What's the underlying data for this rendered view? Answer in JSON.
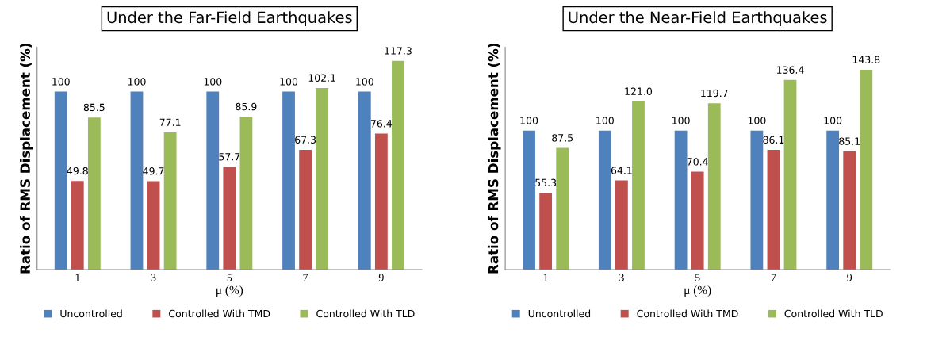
{
  "chart_data": [
    {
      "type": "bar",
      "title": "Under the Far-Field Earthquakes",
      "xlabel": "μ (%)",
      "ylabel": "Ratio of RMS Displacement (%)",
      "categories": [
        "1",
        "3",
        "5",
        "7",
        "9"
      ],
      "ylim": [
        0,
        125
      ],
      "tick_labels": "x",
      "legend": "bottom",
      "series": [
        {
          "name": "Uncontrolled",
          "color": "#4f81bd",
          "values": [
            100,
            100,
            100,
            100,
            100
          ],
          "value_labels": [
            "100",
            "100",
            "100",
            "100",
            "100"
          ]
        },
        {
          "name": "Controlled With TMD",
          "color": "#c0504d",
          "values": [
            49.8,
            49.7,
            57.7,
            67.3,
            76.4
          ],
          "value_labels": [
            "49.8",
            "49.7",
            "57.7",
            "67.3",
            "76.4"
          ]
        },
        {
          "name": "Controlled With TLD",
          "color": "#9bbb59",
          "values": [
            85.5,
            77.1,
            85.9,
            102.1,
            117.3
          ],
          "value_labels": [
            "85.5",
            "77.1",
            "85.9",
            "102.1",
            "117.3"
          ]
        }
      ]
    },
    {
      "type": "bar",
      "title": "Under the Near-Field Earthquakes",
      "xlabel": "μ (%)",
      "ylabel": "Ratio of RMS Displacement (%)",
      "categories": [
        "1",
        "3",
        "5",
        "7",
        "9"
      ],
      "ylim": [
        0,
        160
      ],
      "tick_labels": "x",
      "legend": "bottom",
      "series": [
        {
          "name": "Uncontrolled",
          "color": "#4f81bd",
          "values": [
            100,
            100,
            100,
            100,
            100
          ],
          "value_labels": [
            "100",
            "100",
            "100",
            "100",
            "100"
          ]
        },
        {
          "name": "Controlled With TMD",
          "color": "#c0504d",
          "values": [
            55.3,
            64.1,
            70.4,
            86.1,
            85.1
          ],
          "value_labels": [
            "55.3",
            "64.1",
            "70.4",
            "86.1",
            "85.1"
          ]
        },
        {
          "name": "Controlled With TLD",
          "color": "#9bbb59",
          "values": [
            87.5,
            121.0,
            119.7,
            136.4,
            143.8
          ],
          "value_labels": [
            "87.5",
            "121.0",
            "119.7",
            "136.4",
            "143.8"
          ]
        }
      ]
    }
  ]
}
